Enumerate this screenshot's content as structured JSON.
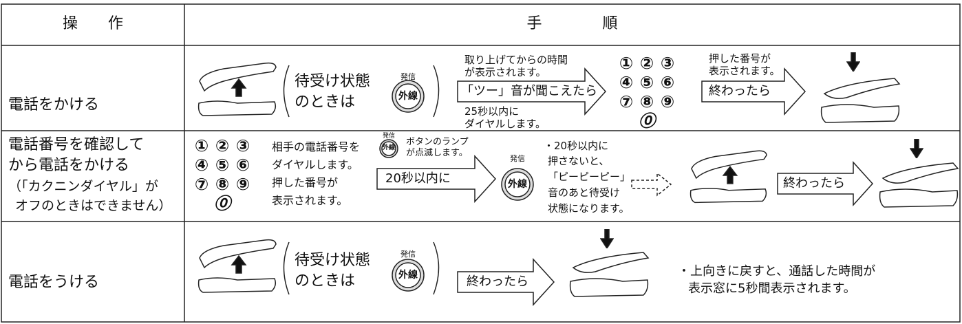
{
  "header": {
    "operation": "操　　作",
    "procedure": "手　　　　順"
  },
  "rows": [
    {
      "label": [
        "電話をかける"
      ],
      "standby": [
        "待受け状態",
        "のときは"
      ],
      "button": {
        "caption": "発信",
        "face": "外線"
      },
      "arrow_note_top": [
        "取り上げてからの時間",
        "が表示されます。"
      ],
      "arrow_text": "「ツー」音が聞こえたら",
      "arrow_note_bottom": [
        "25秒以内に",
        "ダイヤルします。"
      ],
      "keypad": [
        "①",
        "②",
        "③",
        "④",
        "⑤",
        "⑥",
        "⑦",
        "⑧",
        "⑨",
        "⓪"
      ],
      "display_note": [
        "押した番号が",
        "表示されます。"
      ],
      "end_arrow_text": "終わったら"
    },
    {
      "label": [
        "電話番号を確認して",
        "から電話をかける",
        "（「カクニンダイヤル」が",
        "オフのときはできません）"
      ],
      "keypad": [
        "①",
        "②",
        "③",
        "④",
        "⑤",
        "⑥",
        "⑦",
        "⑧",
        "⑨",
        "⓪"
      ],
      "dial_note": [
        "相手の電話番号を",
        "ダイヤルします。",
        "押した番号が",
        "表示されます。"
      ],
      "small_button": {
        "caption": "発信",
        "face": "外線"
      },
      "lamp_note": [
        "ボタンのランプ",
        "が点滅します。"
      ],
      "arrow_text": "20秒以内に",
      "button": {
        "caption": "発信",
        "face": "外線"
      },
      "timeout_note": [
        "・20秒以内に",
        "押さないと、",
        "「ピーピーピー」",
        "音のあと待受け",
        "状態になります。"
      ],
      "end_arrow_text": "終わったら"
    },
    {
      "label": [
        "電話をうける"
      ],
      "standby": [
        "待受け状態",
        "のときは"
      ],
      "button": {
        "caption": "発信",
        "face": "外線"
      },
      "end_arrow_text": "終わったら",
      "note": [
        "・上向きに戻すと、通話した時間が",
        "表示窓に5秒間表示されます。"
      ]
    }
  ]
}
